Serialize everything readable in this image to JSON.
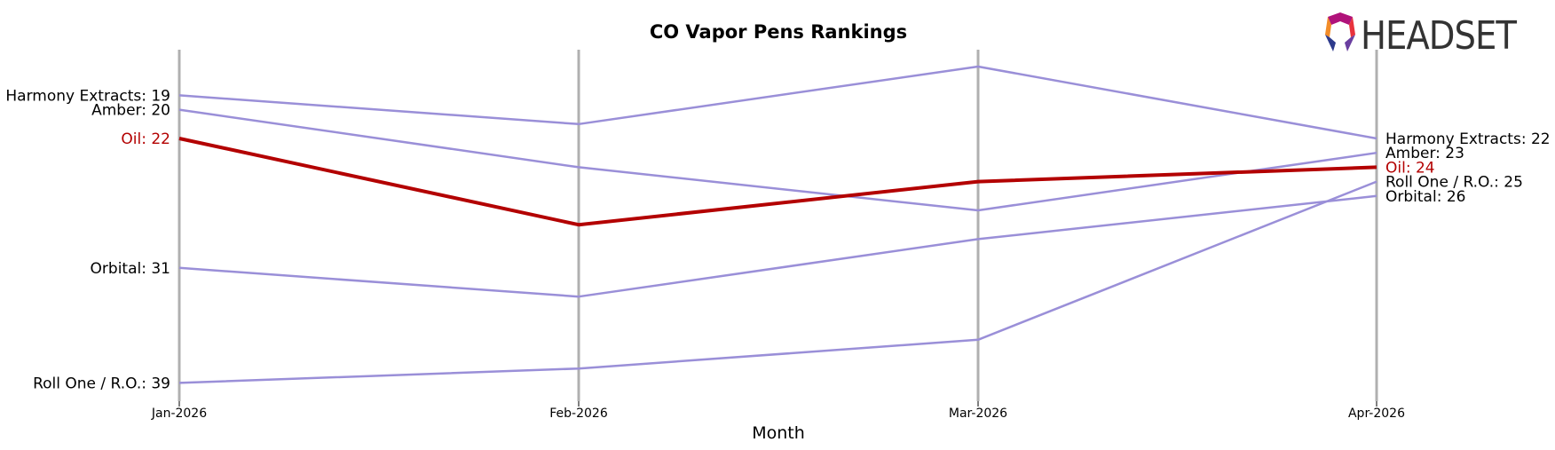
{
  "chart_data": {
    "type": "line",
    "title": "CO Vapor Pens Rankings",
    "xlabel": "Month",
    "ylabel": "",
    "x": [
      "Jan-2026",
      "Feb-2026",
      "Mar-2026",
      "Apr-2026"
    ],
    "y_inverted": true,
    "ylim": [
      17,
      40
    ],
    "grid": "vertical",
    "legend": "none",
    "highlight_color": "#b30000",
    "series_color": "#9a8fd8",
    "series": [
      {
        "name": "Harmony Extracts",
        "values": [
          19,
          21,
          17,
          22
        ],
        "start_label": "Harmony Extracts: 19",
        "end_label": "Harmony Extracts: 22",
        "highlight": false
      },
      {
        "name": "Amber",
        "values": [
          20,
          24,
          27,
          23
        ],
        "start_label": "Amber: 20",
        "end_label": "Amber: 23",
        "highlight": false
      },
      {
        "name": "Oil",
        "values": [
          22,
          28,
          25,
          24
        ],
        "start_label": "Oil: 22",
        "end_label": "Oil: 24",
        "highlight": true
      },
      {
        "name": "Roll One / R.O.",
        "values": [
          39,
          38,
          36,
          25
        ],
        "start_label": "Roll One / R.O.: 39",
        "end_label": "Roll One / R.O.: 25",
        "highlight": false
      },
      {
        "name": "Orbital",
        "values": [
          31,
          33,
          29,
          26
        ],
        "start_label": "Orbital: 31",
        "end_label": "Orbital: 26",
        "highlight": false
      }
    ]
  },
  "logo": {
    "text": "HEADSET",
    "colors": [
      "#e8323c",
      "#f28c28",
      "#b0127a",
      "#2d3a8c",
      "#6a3fa0"
    ]
  }
}
